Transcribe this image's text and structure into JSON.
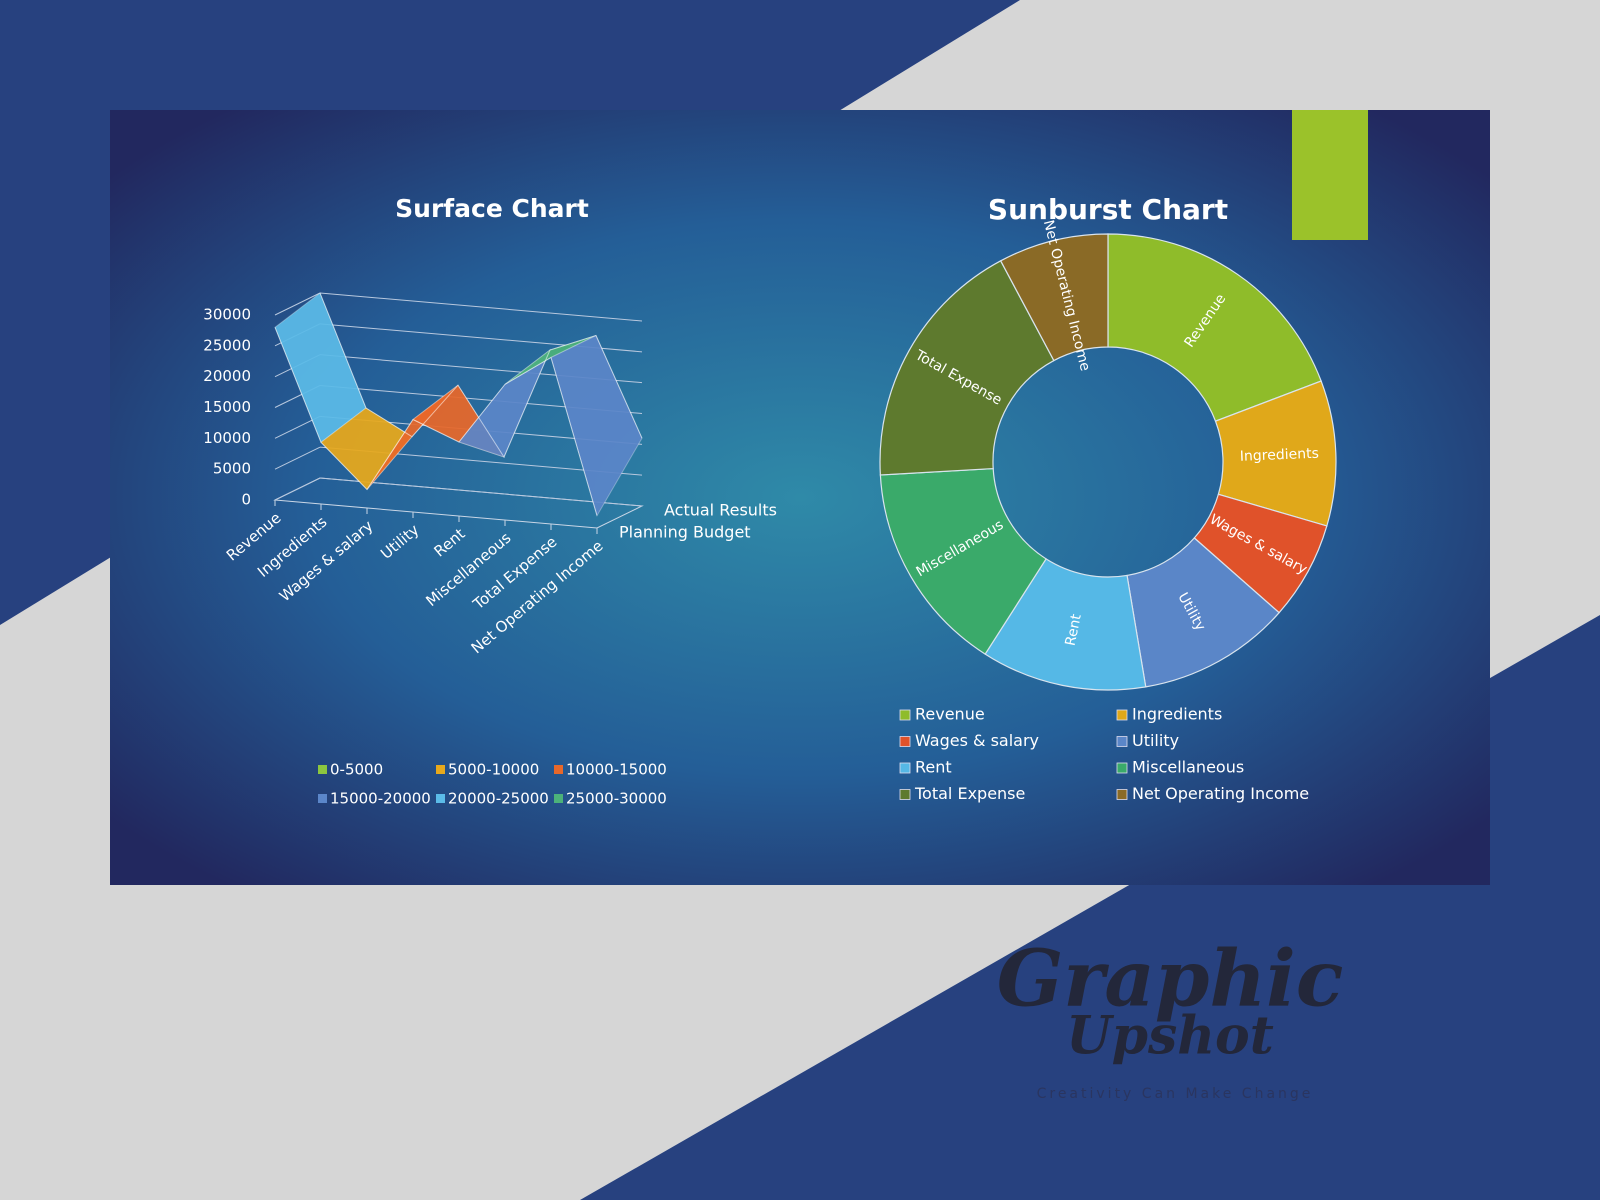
{
  "chart_data": [
    {
      "type": "surface",
      "title": "Surface Chart",
      "categories": [
        "Revenue",
        "Ingredients",
        "Wages & salary",
        "Utility",
        "Rent",
        "Miscellaneous",
        "Total Expense",
        "Net Operating Income"
      ],
      "series": [
        {
          "name": "Actual Results",
          "values": [
            30000,
            12000,
            8000,
            17000,
            6000,
            24000,
            27000,
            11000
          ]
        },
        {
          "name": "Planning Budget",
          "values": [
            28000,
            10000,
            3000,
            15000,
            12000,
            22000,
            27000,
            2000
          ]
        }
      ],
      "ylim": [
        0,
        30000
      ],
      "yticks": [
        0,
        5000,
        10000,
        15000,
        20000,
        25000,
        30000
      ],
      "bands": [
        {
          "from": 0,
          "to": 5000,
          "label": "0-5000",
          "color": "#8cc63f"
        },
        {
          "from": 5000,
          "to": 10000,
          "label": "5000-10000",
          "color": "#e8a91c"
        },
        {
          "from": 10000,
          "to": 15000,
          "label": "10000-15000",
          "color": "#e8682a"
        },
        {
          "from": 15000,
          "to": 20000,
          "label": "15000-20000",
          "color": "#5b86c9"
        },
        {
          "from": 20000,
          "to": 25000,
          "label": "20000-25000",
          "color": "#5bbbe8"
        },
        {
          "from": 25000,
          "to": 30000,
          "label": "25000-30000",
          "color": "#4cb27a"
        }
      ]
    },
    {
      "type": "sunburst",
      "title": "Sunburst Chart",
      "categories": [
        "Revenue",
        "Ingredients",
        "Wages & salary",
        "Utility",
        "Rent",
        "Miscellaneous",
        "Total Expense",
        "Net Operating Income"
      ],
      "values": [
        69,
        37,
        25,
        39,
        42,
        54,
        65,
        28
      ],
      "colors": [
        "#8fbc2a",
        "#e0a81a",
        "#e0522a",
        "#5a86c8",
        "#55b8e6",
        "#3aaa6a",
        "#5e7a2e",
        "#8a6a26"
      ]
    }
  ],
  "logo": {
    "line1": "Graphic",
    "line2": "Upshot",
    "tagline": "Creativity Can Make Change"
  }
}
